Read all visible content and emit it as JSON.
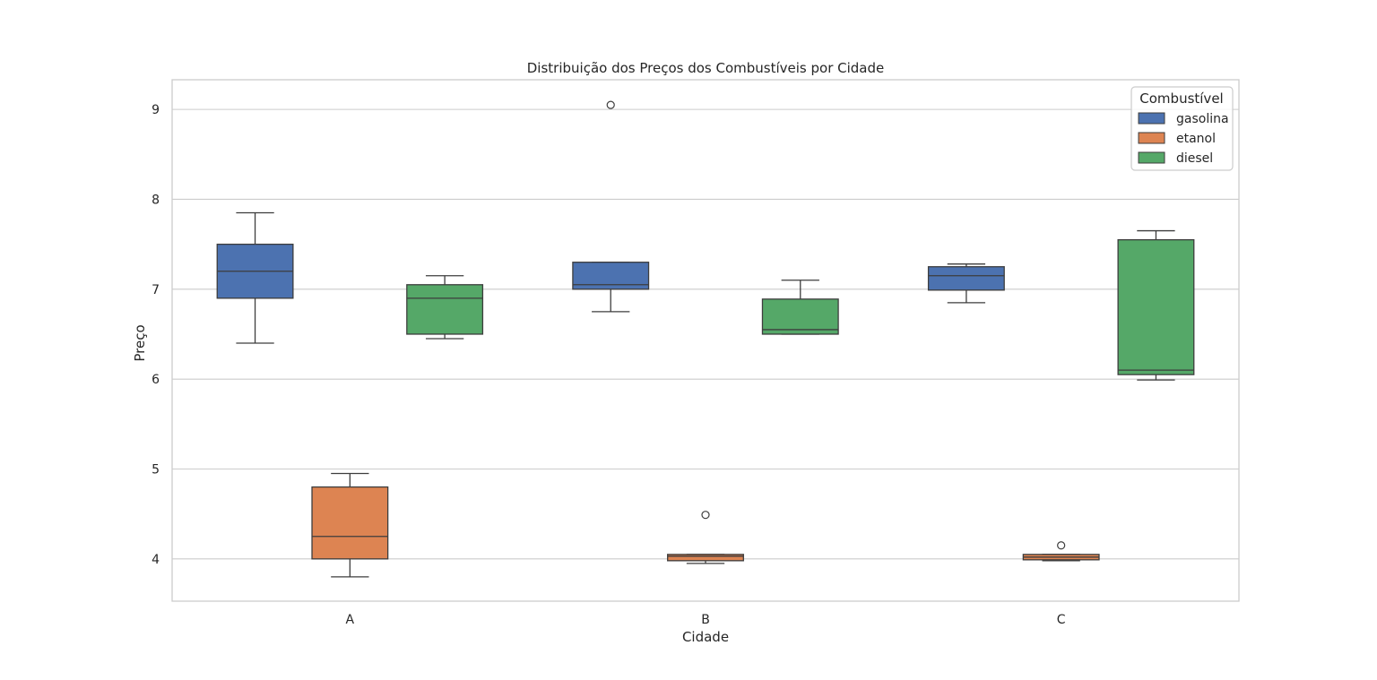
{
  "chart_data": {
    "type": "box",
    "title": "Distribuição dos Preços dos Combustíveis por Cidade",
    "xlabel": "Cidade",
    "ylabel": "Preço",
    "categories": [
      "A",
      "B",
      "C"
    ],
    "ylim": [
      3.53,
      9.33
    ],
    "yticks": [
      4,
      5,
      6,
      7,
      8,
      9
    ],
    "grid": true,
    "legend": {
      "title": "Combustível",
      "placement": "top-right"
    },
    "series": [
      {
        "name": "gasolina",
        "color": "#4c72b0",
        "boxes": [
          {
            "category": "A",
            "min": 6.4,
            "q1": 6.9,
            "median": 7.2,
            "q3": 7.5,
            "max": 7.85,
            "outliers": []
          },
          {
            "category": "B",
            "min": 6.75,
            "q1": 7.0,
            "median": 7.05,
            "q3": 7.3,
            "max": 7.3,
            "outliers": [
              9.05
            ]
          },
          {
            "category": "C",
            "min": 6.85,
            "q1": 6.99,
            "median": 7.15,
            "q3": 7.25,
            "max": 7.28,
            "outliers": []
          }
        ]
      },
      {
        "name": "etanol",
        "color": "#dd8452",
        "boxes": [
          {
            "category": "A",
            "min": 3.8,
            "q1": 4.0,
            "median": 4.25,
            "q3": 4.8,
            "max": 4.95,
            "outliers": []
          },
          {
            "category": "B",
            "min": 3.95,
            "q1": 3.98,
            "median": 4.03,
            "q3": 4.05,
            "max": 4.05,
            "outliers": [
              4.49
            ]
          },
          {
            "category": "C",
            "min": 3.98,
            "q1": 3.99,
            "median": 4.02,
            "q3": 4.05,
            "max": 4.05,
            "outliers": [
              4.15
            ]
          }
        ]
      },
      {
        "name": "diesel",
        "color": "#55a868",
        "boxes": [
          {
            "category": "A",
            "min": 6.45,
            "q1": 6.5,
            "median": 6.9,
            "q3": 7.05,
            "max": 7.15,
            "outliers": []
          },
          {
            "category": "B",
            "min": 6.5,
            "q1": 6.5,
            "median": 6.55,
            "q3": 6.89,
            "max": 7.1,
            "outliers": []
          },
          {
            "category": "C",
            "min": 5.99,
            "q1": 6.05,
            "median": 6.1,
            "q3": 7.55,
            "max": 7.65,
            "outliers": []
          }
        ]
      }
    ]
  }
}
